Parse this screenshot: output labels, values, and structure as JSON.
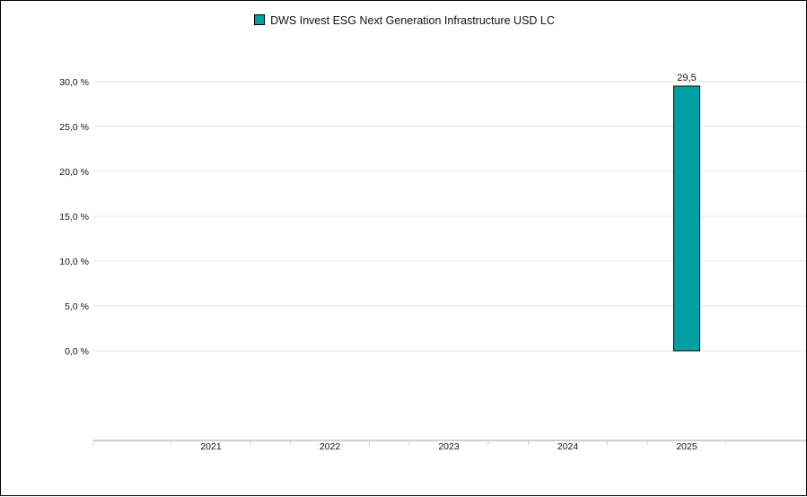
{
  "chart_data": {
    "type": "bar",
    "categories": [
      "2021",
      "2022",
      "2023",
      "2024",
      "2025"
    ],
    "series": [
      {
        "name": "DWS Invest ESG Next Generation Infrastructure USD LC",
        "values": [
          null,
          null,
          null,
          null,
          29.5
        ],
        "value_labels": [
          "",
          "",
          "",
          "",
          "29,5"
        ],
        "color": "#009fa3"
      }
    ],
    "y_ticks": [
      {
        "value": 0,
        "label": "0,0 %"
      },
      {
        "value": 5,
        "label": "5,0 %"
      },
      {
        "value": 10,
        "label": "10,0 %"
      },
      {
        "value": 15,
        "label": "15,0 %"
      },
      {
        "value": 20,
        "label": "20,0 %"
      },
      {
        "value": 25,
        "label": "25,0 %"
      },
      {
        "value": 30,
        "label": "30,0 %"
      }
    ],
    "ylim": [
      -5,
      35
    ],
    "legend_position": "top-center",
    "grid": true
  }
}
